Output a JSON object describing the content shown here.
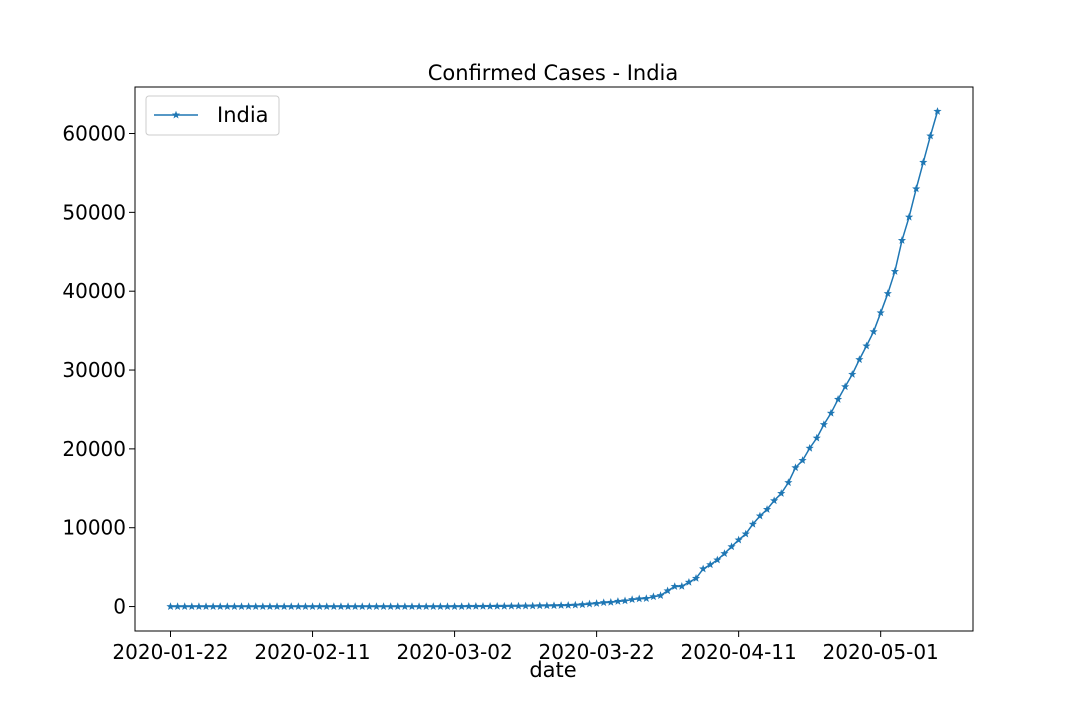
{
  "chart_data": {
    "type": "line",
    "title": "Confirmed Cases - India",
    "xlabel": "date",
    "ylabel": "",
    "x_start": "2020-01-22",
    "x_end": "2020-05-09",
    "xlim": [
      "2020-01-17",
      "2020-05-14"
    ],
    "ylim": [
      -3100,
      65900
    ],
    "x_ticks": [
      "2020-01-22",
      "2020-02-11",
      "2020-03-02",
      "2020-03-22",
      "2020-04-11",
      "2020-05-01"
    ],
    "y_ticks": [
      0,
      10000,
      20000,
      30000,
      40000,
      50000,
      60000
    ],
    "grid": false,
    "legend_position": "top-left",
    "series": [
      {
        "name": "India",
        "color": "#1f77b4",
        "marker": "star",
        "values": [
          0,
          0,
          0,
          0,
          0,
          0,
          0,
          0,
          1,
          1,
          1,
          2,
          3,
          3,
          3,
          3,
          3,
          3,
          3,
          3,
          3,
          3,
          3,
          3,
          3,
          3,
          3,
          3,
          3,
          3,
          3,
          3,
          3,
          3,
          3,
          3,
          3,
          3,
          3,
          3,
          5,
          5,
          28,
          30,
          31,
          34,
          39,
          43,
          56,
          62,
          73,
          82,
          102,
          113,
          119,
          142,
          156,
          194,
          244,
          330,
          396,
          499,
          536,
          657,
          727,
          887,
          987,
          1024,
          1251,
          1397,
          1998,
          2543,
          2567,
          3082,
          3588,
          4778,
          5311,
          5916,
          6725,
          7598,
          8446,
          9205,
          10453,
          11487,
          12322,
          13430,
          14352,
          15722,
          17615,
          18539,
          20080,
          21370,
          23077,
          24530,
          26283,
          27890,
          29451,
          31324,
          33062,
          34863,
          37257,
          39699,
          42505,
          46437,
          49400,
          52987,
          56351,
          59695,
          62808
        ]
      }
    ]
  }
}
